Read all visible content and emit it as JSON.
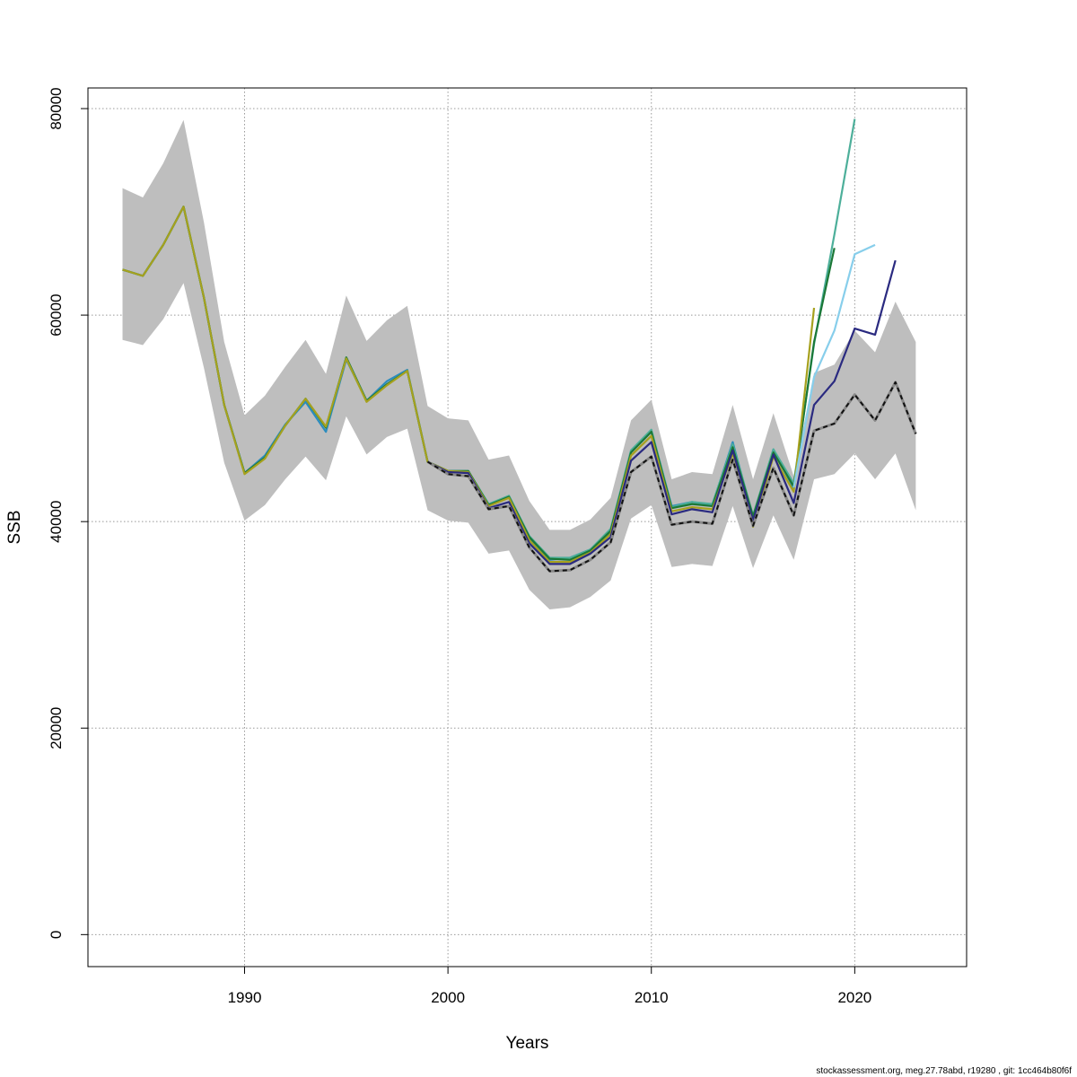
{
  "chart_data": {
    "type": "line",
    "title": "",
    "xlabel": "Years",
    "ylabel": "SSB",
    "xlim": [
      1982.3,
      2025.5
    ],
    "ylim": [
      -3100,
      82000
    ],
    "x_ticks": [
      1990,
      2000,
      2010,
      2020
    ],
    "y_ticks": [
      0,
      20000,
      40000,
      60000,
      80000
    ],
    "x_tick_labels": [
      "1990",
      "2000",
      "2010",
      "2020"
    ],
    "y_tick_labels": [
      "0",
      "20000",
      "40000",
      "60000",
      "80000"
    ],
    "grid": true,
    "legend": "none",
    "confidence_band": {
      "color": "#bebebe",
      "x": [
        1984,
        1985,
        1986,
        1987,
        1988,
        1989,
        1990,
        1991,
        1992,
        1993,
        1994,
        1995,
        1996,
        1997,
        1998,
        1999,
        2000,
        2001,
        2002,
        2003,
        2004,
        2005,
        2006,
        2007,
        2008,
        2009,
        2010,
        2011,
        2012,
        2013,
        2014,
        2015,
        2016,
        2017,
        2018,
        2019,
        2020,
        2021,
        2022,
        2023
      ],
      "upper": [
        72300,
        71400,
        74700,
        78900,
        69000,
        57400,
        50300,
        52200,
        55000,
        57600,
        54300,
        61900,
        57500,
        59500,
        60900,
        51200,
        50000,
        49800,
        46000,
        46400,
        42000,
        39200,
        39200,
        40200,
        42300,
        49800,
        51800,
        44100,
        44800,
        44600,
        51300,
        44100,
        50500,
        44400,
        54400,
        55200,
        58500,
        56400,
        61300,
        57400
      ],
      "lower": [
        57600,
        57100,
        59600,
        63100,
        54900,
        45700,
        40100,
        41600,
        44100,
        46300,
        44000,
        50200,
        46500,
        48200,
        49000,
        41100,
        40100,
        39900,
        36900,
        37200,
        33400,
        31500,
        31700,
        32700,
        34300,
        40300,
        41600,
        35600,
        35900,
        35700,
        41500,
        35500,
        40600,
        36300,
        44100,
        44600,
        46600,
        44100,
        46600,
        41100
      ]
    },
    "series": [
      {
        "color": "#2b8cbe",
        "dashed": false,
        "x": [
          1984,
          1985,
          1986,
          1987,
          1988,
          1989,
          1990,
          1991,
          1992,
          1993,
          1994,
          1995,
          1996,
          1997,
          1998,
          1999,
          2000,
          2001,
          2002,
          2003,
          2004,
          2005,
          2006,
          2007,
          2008,
          2009,
          2010,
          2011,
          2012,
          2013,
          2014,
          2015,
          2016,
          2017
        ],
        "y": [
          64400,
          63800,
          66800,
          70500,
          61700,
          51300,
          44700,
          46400,
          49400,
          51600,
          48700,
          55700,
          51700,
          53600,
          54700,
          45800,
          44900,
          44900,
          41600,
          42400,
          38400,
          36300,
          36500,
          37300,
          39000,
          46800,
          48800,
          41500,
          41900,
          41600,
          47700,
          40400,
          47000,
          43200
        ]
      },
      {
        "color": "#4daf9a",
        "dashed": false,
        "x": [
          1984,
          1985,
          1986,
          1987,
          1988,
          1989,
          1990,
          1991,
          1992,
          1993,
          1994,
          1995,
          1996,
          1997,
          1998,
          1999,
          2000,
          2001,
          2002,
          2003,
          2004,
          2005,
          2006,
          2007,
          2008,
          2009,
          2010,
          2011,
          2012,
          2013,
          2014,
          2015,
          2016,
          2017,
          2018,
          2019,
          2020
        ],
        "y": [
          64400,
          63800,
          66800,
          70500,
          61700,
          51300,
          44700,
          46200,
          49300,
          51900,
          49100,
          55900,
          51700,
          53300,
          54600,
          45800,
          44900,
          44900,
          41700,
          42500,
          38600,
          36500,
          36500,
          37300,
          39300,
          46900,
          48900,
          41400,
          41900,
          41700,
          47500,
          40600,
          47000,
          43700,
          57200,
          67800,
          79000
        ]
      },
      {
        "color": "#1b7837",
        "dashed": false,
        "x": [
          1984,
          1985,
          1986,
          1987,
          1988,
          1989,
          1990,
          1991,
          1992,
          1993,
          1994,
          1995,
          1996,
          1997,
          1998,
          1999,
          2000,
          2001,
          2002,
          2003,
          2004,
          2005,
          2006,
          2007,
          2008,
          2009,
          2010,
          2011,
          2012,
          2013,
          2014,
          2015,
          2016,
          2017,
          2018,
          2019
        ],
        "y": [
          64400,
          63800,
          66800,
          70500,
          61700,
          51300,
          44700,
          46200,
          49300,
          51900,
          49100,
          55900,
          51700,
          53300,
          54600,
          45800,
          44900,
          44900,
          41600,
          42400,
          38500,
          36400,
          36300,
          37200,
          39100,
          46700,
          48700,
          41300,
          41700,
          41500,
          47200,
          40500,
          46700,
          43400,
          57400,
          66500
        ]
      },
      {
        "color": "#a6a11e",
        "dashed": false,
        "x": [
          1984,
          1985,
          1986,
          1987,
          1988,
          1989,
          1990,
          1991,
          1992,
          1993,
          1994,
          1995,
          1996,
          1997,
          1998,
          1999,
          2000,
          2001,
          2002,
          2003,
          2004,
          2005,
          2006,
          2007,
          2008,
          2009,
          2010,
          2011,
          2012,
          2013,
          2014,
          2015,
          2016,
          2017,
          2018
        ],
        "y": [
          64400,
          63800,
          66800,
          70500,
          61700,
          51300,
          44600,
          46100,
          49300,
          51900,
          49200,
          55800,
          51600,
          53200,
          54600,
          45800,
          44900,
          44800,
          41500,
          42300,
          38200,
          36100,
          36100,
          37000,
          38800,
          46400,
          48300,
          41000,
          41400,
          41200,
          46600,
          39500,
          46300,
          42900,
          60700
        ]
      },
      {
        "color": "#87ceeb",
        "dashed": false,
        "x": [
          2017,
          2018,
          2019,
          2020,
          2021
        ],
        "y": [
          43300,
          54000,
          58500,
          65900,
          66800
        ]
      },
      {
        "color": "#2a2a80",
        "dashed": false,
        "x": [
          1999,
          2000,
          2001,
          2002,
          2003,
          2004,
          2005,
          2006,
          2007,
          2008,
          2009,
          2010,
          2011,
          2012,
          2013,
          2014,
          2015,
          2016,
          2017,
          2018,
          2019,
          2020,
          2021,
          2022
        ],
        "y": [
          45800,
          44800,
          44700,
          41300,
          41900,
          37900,
          35900,
          35900,
          36900,
          38500,
          45900,
          47700,
          40700,
          41200,
          40900,
          46900,
          40100,
          46500,
          41800,
          51300,
          53600,
          58700,
          58100,
          65300
        ]
      },
      {
        "color": "#111111",
        "dashed": true,
        "x": [
          1999,
          2000,
          2001,
          2002,
          2003,
          2004,
          2005,
          2006,
          2007,
          2008,
          2009,
          2010,
          2011,
          2012,
          2013,
          2014,
          2015,
          2016,
          2017,
          2018,
          2019,
          2020,
          2021,
          2022,
          2023
        ],
        "y": [
          45800,
          44600,
          44400,
          41200,
          41500,
          37500,
          35200,
          35300,
          36300,
          38000,
          44800,
          46300,
          39700,
          40000,
          39800,
          46000,
          39600,
          45200,
          40600,
          48800,
          49500,
          52300,
          49800,
          53500,
          48500
        ]
      }
    ]
  },
  "footer": {
    "source_text": "stockassessment.org, meg.27.78abd, r19280 , git: 1cc464b80f6f"
  }
}
